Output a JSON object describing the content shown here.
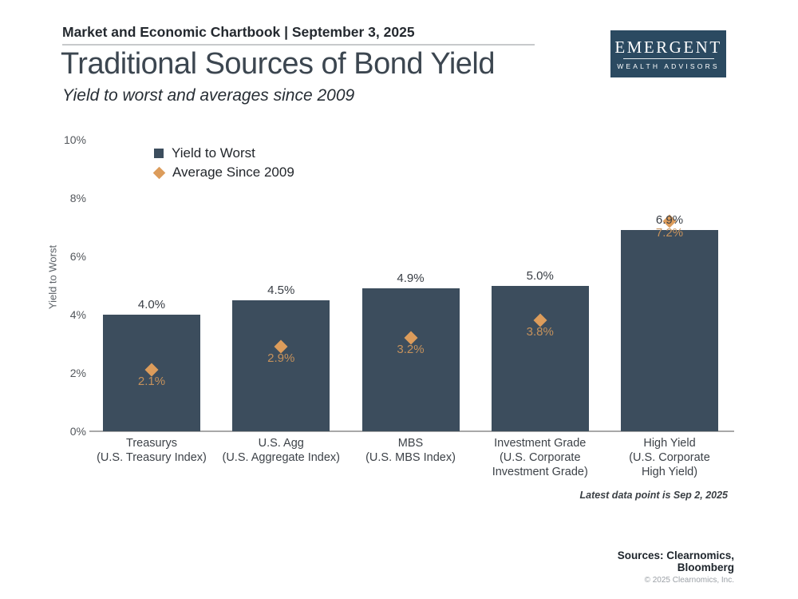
{
  "page": {
    "header": {
      "chartbook_line": "Market and Economic Chartbook | September 3, 2025",
      "title": "Traditional Sources of Bond Yield",
      "subtitle": "Yield to worst and averages since 2009"
    },
    "logo": {
      "name": "EMERGENT",
      "tagline": "WEALTH ADVISORS",
      "bg_color": "#2b4a61"
    },
    "footnote": "Latest data point is Sep 2, 2025",
    "footer": {
      "sources": "Sources: Clearnomics,\nBloomberg",
      "copyright": "© 2025 Clearnomics, Inc."
    }
  },
  "legend": {
    "items": [
      {
        "label": "Yield to Worst",
        "marker": "square",
        "color": "#3c4d5d"
      },
      {
        "label": "Average Since 2009",
        "marker": "diamond",
        "color": "#dc9c5b"
      }
    ]
  },
  "chart_data": {
    "type": "bar",
    "title": "Traditional Sources of Bond Yield",
    "subtitle": "Yield to worst and averages since 2009",
    "xlabel": "",
    "ylabel": "Yield to Worst",
    "ylim": [
      0,
      10
    ],
    "ytick_values": [
      0,
      2,
      4,
      6,
      8,
      10
    ],
    "ytick_labels": [
      "0%",
      "2%",
      "4%",
      "6%",
      "8%",
      "10%"
    ],
    "grid": false,
    "legend_position": "upper-left",
    "categories": [
      "Treasurys\n(U.S. Treasury Index)",
      "U.S. Agg\n(U.S. Aggregate Index)",
      "MBS\n(U.S. MBS Index)",
      "Investment Grade\n(U.S. Corporate\nInvestment Grade)",
      "High Yield\n(U.S. Corporate\nHigh Yield)"
    ],
    "series": [
      {
        "name": "Yield to Worst",
        "kind": "bar",
        "color": "#3c4d5d",
        "label_color": "#383d44",
        "values": [
          4.0,
          4.5,
          4.9,
          5.0,
          6.9
        ],
        "labels": [
          "4.0%",
          "4.5%",
          "4.9%",
          "5.0%",
          "6.9%"
        ]
      },
      {
        "name": "Average Since 2009",
        "kind": "point",
        "color": "#dc9c5b",
        "label_color": "#c6925c",
        "values": [
          2.1,
          2.9,
          3.2,
          3.8,
          7.2
        ],
        "labels": [
          "2.1%",
          "2.9%",
          "3.2%",
          "3.8%",
          "7.2%"
        ]
      }
    ]
  }
}
